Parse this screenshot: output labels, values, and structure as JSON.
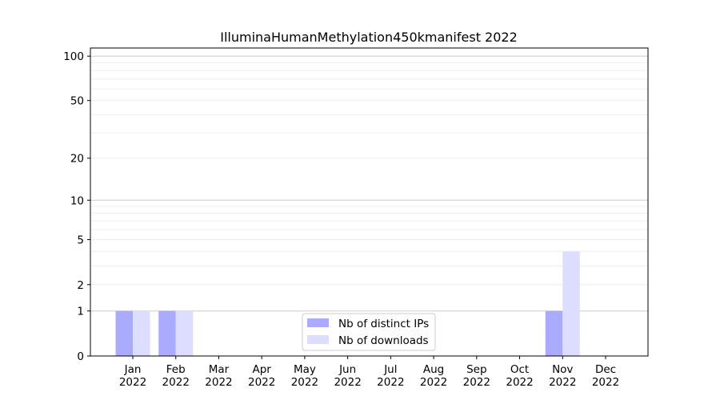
{
  "chart_data": {
    "type": "bar",
    "title": "IlluminaHumanMethylation450kmanifest 2022",
    "xlabel": "",
    "ylabel": "",
    "yscale": "log10(1+y)",
    "ylim": [
      0,
      113
    ],
    "yticks": [
      0,
      1,
      2,
      5,
      10,
      20,
      50,
      100
    ],
    "ytick_labels": [
      "0",
      "1",
      "2",
      "5",
      "10",
      "20",
      "50",
      "100"
    ],
    "grid": true,
    "legend_placement": "bottom-center",
    "categories": [
      "Jan\n2022",
      "Feb\n2022",
      "Mar\n2022",
      "Apr\n2022",
      "May\n2022",
      "Jun\n2022",
      "Jul\n2022",
      "Aug\n2022",
      "Sep\n2022",
      "Oct\n2022",
      "Nov\n2022",
      "Dec\n2022"
    ],
    "month_labels": [
      "Jan",
      "Feb",
      "Mar",
      "Apr",
      "May",
      "Jun",
      "Jul",
      "Aug",
      "Sep",
      "Oct",
      "Nov",
      "Dec"
    ],
    "year_label": "2022",
    "series": [
      {
        "name": "Nb of distinct IPs",
        "color": "#aaaaff",
        "values": [
          1,
          1,
          0,
          0,
          0,
          0,
          0,
          0,
          0,
          0,
          1,
          0
        ]
      },
      {
        "name": "Nb of downloads",
        "color": "#ddddff",
        "values": [
          1,
          1,
          0,
          0,
          0,
          0,
          0,
          0,
          0,
          0,
          4,
          0
        ]
      }
    ]
  }
}
